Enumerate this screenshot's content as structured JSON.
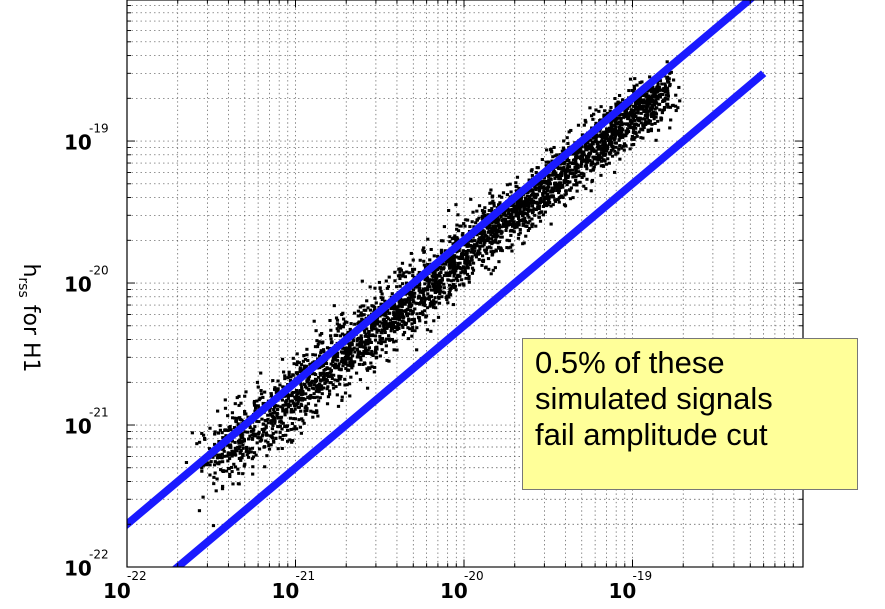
{
  "chart_data": {
    "type": "scatter",
    "ylabel": {
      "main": "h",
      "subscript": "rss",
      "suffix": " for H1"
    },
    "x_scale": "log",
    "y_scale": "log",
    "xlim": [
      1e-22,
      5e-19
    ],
    "ylim": [
      1e-22,
      5e-19
    ],
    "grid": true,
    "x_ticks": [
      {
        "base": "10",
        "exp": "-22"
      },
      {
        "base": "10",
        "exp": "-21"
      },
      {
        "base": "10",
        "exp": "-20"
      },
      {
        "base": "10",
        "exp": "-19"
      }
    ],
    "y_ticks": [
      {
        "base": "10",
        "exp": "-22"
      },
      {
        "base": "10",
        "exp": "-21"
      },
      {
        "base": "10",
        "exp": "-20"
      },
      {
        "base": "10",
        "exp": "-19"
      }
    ],
    "series": [
      {
        "kind": "points",
        "color": "#000000",
        "trend": {
          "x": [
            3e-22,
            1.6e-19
          ],
          "y": [
            5e-22,
            2.4e-19
          ]
        },
        "point_count_approx": 9000
      },
      {
        "kind": "band_line",
        "color": "#1a1aff",
        "x": [
          1e-22,
          2.5e-19
        ],
        "y": [
          1e-22,
          5e-19
        ],
        "ratio_y_over_x": 2.0
      },
      {
        "kind": "band_line",
        "color": "#1a1aff",
        "ratio_y_over_x": 0.5
      }
    ],
    "annotation_lines": [
      "0.5% of these",
      "simulated signals",
      "fail amplitude cut"
    ],
    "colors": {
      "band": "#1a1aff",
      "points": "#000000",
      "annotation_bg": "#ffff99"
    }
  }
}
